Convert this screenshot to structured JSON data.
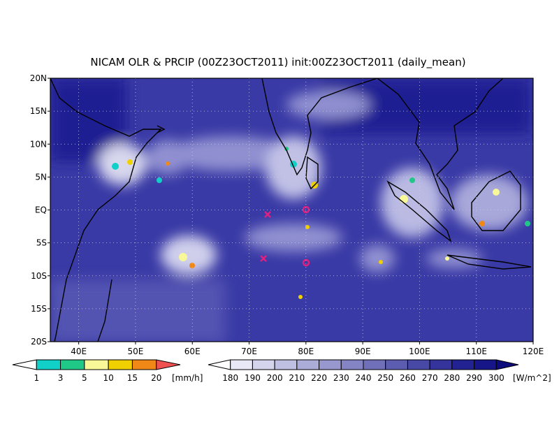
{
  "title": "NICAM OLR & PRCIP (00Z23OCT2011) init:00Z23OCT2011 (daily_mean)",
  "map": {
    "lat_labels": [
      "20N",
      "15N",
      "10N",
      "5N",
      "EQ",
      "5S",
      "10S",
      "15S",
      "20S"
    ],
    "lon_labels": [
      "40E",
      "50E",
      "60E",
      "70E",
      "80E",
      "90E",
      "100E",
      "110E",
      "120E"
    ]
  },
  "precip_legend": {
    "labels": [
      "1",
      "3",
      "5",
      "10",
      "15",
      "20"
    ],
    "unit": "[mm/h]",
    "colors": [
      "#ffffff",
      "#10d0c8",
      "#20c888",
      "#f8f898",
      "#f0d000",
      "#f08818",
      "#f05050"
    ]
  },
  "olr_legend": {
    "labels": [
      "180",
      "190",
      "200",
      "210",
      "220",
      "230",
      "240",
      "250",
      "260",
      "270",
      "280",
      "290",
      "300"
    ],
    "unit": "[W/m^2]",
    "colors": [
      "#ffffff",
      "#e8e8f6",
      "#d4d4ec",
      "#c0c0e2",
      "#acacd8",
      "#9898ce",
      "#8484c4",
      "#7070ba",
      "#5c5cb0",
      "#4848a6",
      "#34349c",
      "#222292",
      "#161688",
      "#0c0c7c"
    ]
  }
}
